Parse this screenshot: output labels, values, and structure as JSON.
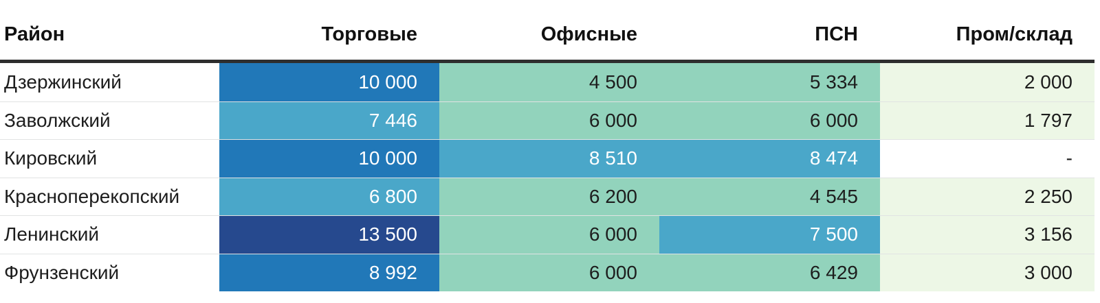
{
  "palette": {
    "cell_blue_mid": "#2178b8",
    "cell_blue_light": "#4aa7c9",
    "cell_navy": "#26498e",
    "cell_green": "#92d3bc",
    "cell_green_pale": "#edf7e6",
    "header_rule": "#2e2e2e",
    "text_dark": "#1d1d1d",
    "text_on_blue": "#ffffff"
  },
  "table": {
    "headers": [
      {
        "label": "Район"
      },
      {
        "label": "Торговые"
      },
      {
        "label": "Офисные"
      },
      {
        "label": "ПСН"
      },
      {
        "label": "Пром/склад"
      }
    ],
    "rows": [
      {
        "district": "Дзержинский",
        "cells": [
          {
            "value": "10 000",
            "color": "blue_mid"
          },
          {
            "value": "4 500",
            "color": "green"
          },
          {
            "value": "5 334",
            "color": "green"
          },
          {
            "value": "2 000",
            "color": "green_pale"
          }
        ]
      },
      {
        "district": "Заволжский",
        "cells": [
          {
            "value": "7 446",
            "color": "blue_light"
          },
          {
            "value": "6 000",
            "color": "green"
          },
          {
            "value": "6 000",
            "color": "green"
          },
          {
            "value": "1 797",
            "color": "green_pale"
          }
        ]
      },
      {
        "district": "Кировский",
        "cells": [
          {
            "value": "10 000",
            "color": "blue_mid"
          },
          {
            "value": "8 510",
            "color": "blue_light"
          },
          {
            "value": "8 474",
            "color": "blue_light"
          },
          {
            "value": "-",
            "color": "white"
          }
        ]
      },
      {
        "district": "Красноперекопский",
        "cells": [
          {
            "value": "6 800",
            "color": "blue_light"
          },
          {
            "value": "6 200",
            "color": "green"
          },
          {
            "value": "4 545",
            "color": "green"
          },
          {
            "value": "2 250",
            "color": "green_pale"
          }
        ]
      },
      {
        "district": "Ленинский",
        "cells": [
          {
            "value": "13 500",
            "color": "navy"
          },
          {
            "value": "6 000",
            "color": "green"
          },
          {
            "value": "7 500",
            "color": "blue_light"
          },
          {
            "value": "3 156",
            "color": "green_pale"
          }
        ]
      },
      {
        "district": "Фрунзенский",
        "cells": [
          {
            "value": "8 992",
            "color": "blue_mid"
          },
          {
            "value": "6 000",
            "color": "green"
          },
          {
            "value": "6 429",
            "color": "green"
          },
          {
            "value": "3 000",
            "color": "green_pale"
          }
        ]
      }
    ]
  },
  "chart_data": {
    "type": "heatmap",
    "title": "",
    "row_axis_label": "Район",
    "columns": [
      "Торговые",
      "Офисные",
      "ПСН",
      "Пром/склад"
    ],
    "rows": [
      "Дзержинский",
      "Заволжский",
      "Кировский",
      "Красноперекопский",
      "Ленинский",
      "Фрунзенский"
    ],
    "values": [
      [
        10000,
        4500,
        5334,
        2000
      ],
      [
        7446,
        6000,
        6000,
        1797
      ],
      [
        10000,
        8510,
        8474,
        null
      ],
      [
        6800,
        6200,
        4545,
        2250
      ],
      [
        13500,
        6000,
        7500,
        3156
      ],
      [
        8992,
        6000,
        6429,
        3000
      ]
    ],
    "missing_value_display": "-",
    "number_format": "space thousands separator",
    "legend": "none",
    "color_scale": "higher value = darker blue (navy max), mid = light blue, lower = green, lowest = pale green"
  }
}
